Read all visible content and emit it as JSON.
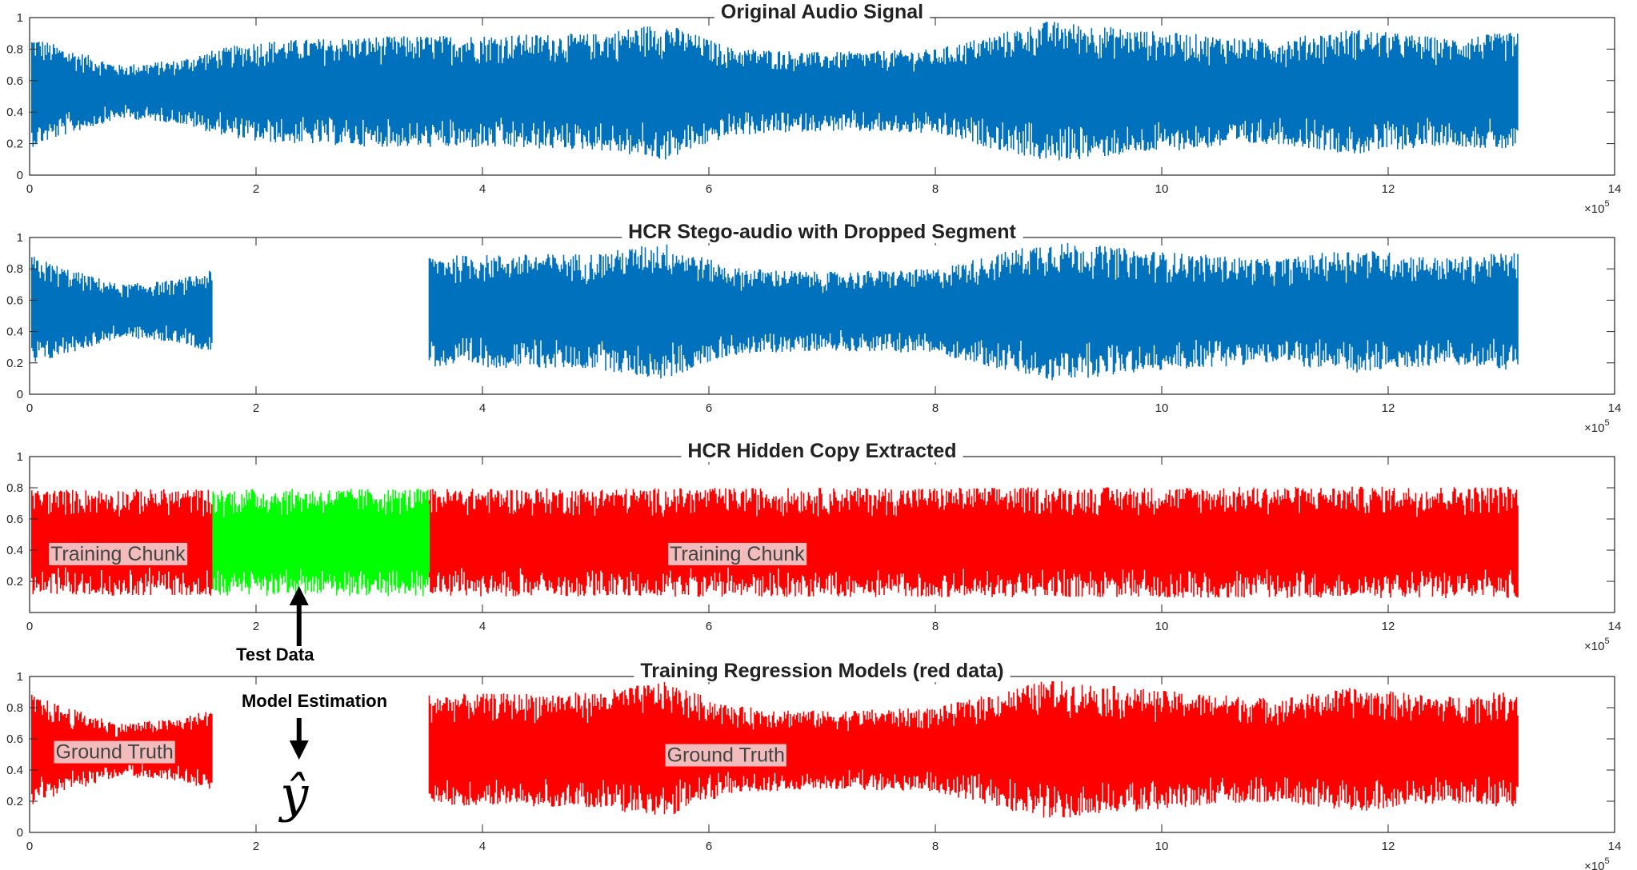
{
  "chart_data": [
    {
      "type": "line",
      "title": "Original Audio Signal",
      "xlim": [
        0,
        14
      ],
      "ylim": [
        0,
        1
      ],
      "x_ticks": [
        0,
        2,
        4,
        6,
        8,
        10,
        12,
        14
      ],
      "y_ticks": [
        0,
        0.2,
        0.4,
        0.6,
        0.8,
        1
      ],
      "x_exponent": "×10^5",
      "series": [
        {
          "color": "#0072bd",
          "segments": [
            [
              0.02,
              13.15
            ]
          ],
          "center": 0.53
        }
      ],
      "envelope": [
        [
          0.0,
          0.36
        ],
        [
          0.3,
          0.28
        ],
        [
          0.8,
          0.17
        ],
        [
          1.3,
          0.2
        ],
        [
          1.6,
          0.26
        ],
        [
          2.0,
          0.32
        ],
        [
          3.0,
          0.35
        ],
        [
          4.0,
          0.36
        ],
        [
          5.0,
          0.37
        ],
        [
          5.6,
          0.44
        ],
        [
          6.2,
          0.28
        ],
        [
          7.0,
          0.25
        ],
        [
          8.0,
          0.27
        ],
        [
          9.0,
          0.45
        ],
        [
          10.0,
          0.38
        ],
        [
          11.0,
          0.33
        ],
        [
          11.7,
          0.4
        ],
        [
          12.5,
          0.34
        ],
        [
          13.15,
          0.38
        ]
      ],
      "labels": []
    },
    {
      "type": "line",
      "title": "HCR Stego-audio with Dropped Segment",
      "xlim": [
        0,
        14
      ],
      "ylim": [
        0,
        1
      ],
      "x_ticks": [
        0,
        2,
        4,
        6,
        8,
        10,
        12,
        14
      ],
      "y_ticks": [
        0,
        0.2,
        0.4,
        0.6,
        0.8,
        1
      ],
      "x_exponent": "×10^5",
      "series": [
        {
          "color": "#0072bd",
          "segments": [
            [
              0.02,
              1.62
            ],
            [
              3.53,
              13.15
            ]
          ],
          "center": 0.53
        }
      ],
      "envelope": [
        [
          0.0,
          0.36
        ],
        [
          0.3,
          0.28
        ],
        [
          0.8,
          0.17
        ],
        [
          1.3,
          0.2
        ],
        [
          1.6,
          0.26
        ],
        [
          2.0,
          0.32
        ],
        [
          3.0,
          0.35
        ],
        [
          4.0,
          0.36
        ],
        [
          5.0,
          0.37
        ],
        [
          5.6,
          0.44
        ],
        [
          6.2,
          0.28
        ],
        [
          7.0,
          0.25
        ],
        [
          8.0,
          0.27
        ],
        [
          9.0,
          0.45
        ],
        [
          10.0,
          0.38
        ],
        [
          11.0,
          0.33
        ],
        [
          11.7,
          0.4
        ],
        [
          12.5,
          0.34
        ],
        [
          13.15,
          0.38
        ]
      ],
      "labels": []
    },
    {
      "type": "line",
      "title": "HCR Hidden Copy Extracted",
      "xlim": [
        0,
        14
      ],
      "ylim": [
        0,
        1
      ],
      "x_ticks": [
        0,
        2,
        4,
        6,
        8,
        10,
        12,
        14
      ],
      "y_ticks": [
        0.2,
        0.4,
        0.6,
        0.8,
        1
      ],
      "x_exponent": "×10^5",
      "series": [
        {
          "color": "#ff0000",
          "segments": [
            [
              0.02,
              1.62
            ],
            [
              3.53,
              13.15
            ]
          ],
          "center": 0.45
        },
        {
          "color": "#00ff00",
          "segments": [
            [
              1.62,
              3.53
            ]
          ],
          "center": 0.45
        }
      ],
      "envelope": [
        [
          0.0,
          0.34
        ],
        [
          13.15,
          0.36
        ]
      ],
      "labels": [
        {
          "text": "Training Chunk",
          "x": 0.78,
          "y": 0.38
        },
        {
          "text": "Training Chunk",
          "x": 6.25,
          "y": 0.38
        }
      ]
    },
    {
      "type": "line",
      "title": "Training Regression Models (red data)",
      "xlim": [
        0,
        14
      ],
      "ylim": [
        0,
        1
      ],
      "x_ticks": [
        0,
        2,
        4,
        6,
        8,
        10,
        12,
        14
      ],
      "y_ticks": [
        0,
        0.2,
        0.4,
        0.6,
        0.8,
        1
      ],
      "x_exponent": "×10^5",
      "series": [
        {
          "color": "#ff0000",
          "segments": [
            [
              0.02,
              1.62
            ],
            [
              3.53,
              13.15
            ]
          ],
          "center": 0.53
        }
      ],
      "envelope": [
        [
          0.0,
          0.36
        ],
        [
          0.3,
          0.28
        ],
        [
          0.8,
          0.17
        ],
        [
          1.3,
          0.2
        ],
        [
          1.6,
          0.26
        ],
        [
          2.0,
          0.32
        ],
        [
          3.0,
          0.35
        ],
        [
          4.0,
          0.36
        ],
        [
          5.0,
          0.37
        ],
        [
          5.6,
          0.44
        ],
        [
          6.2,
          0.28
        ],
        [
          7.0,
          0.25
        ],
        [
          8.0,
          0.27
        ],
        [
          9.0,
          0.45
        ],
        [
          10.0,
          0.38
        ],
        [
          11.0,
          0.33
        ],
        [
          11.7,
          0.4
        ],
        [
          12.5,
          0.34
        ],
        [
          13.15,
          0.38
        ]
      ],
      "labels": [
        {
          "text": "Ground Truth",
          "x": 0.75,
          "y": 0.52
        },
        {
          "text": "Ground Truth",
          "x": 6.15,
          "y": 0.5
        }
      ]
    }
  ],
  "annotations": {
    "test_data": {
      "text": "Test Data",
      "arrow_x": 2.38
    },
    "model_estimation": {
      "text": "Model Estimation",
      "arrow_x": 2.38
    },
    "estimate_symbol": "ŷ"
  }
}
